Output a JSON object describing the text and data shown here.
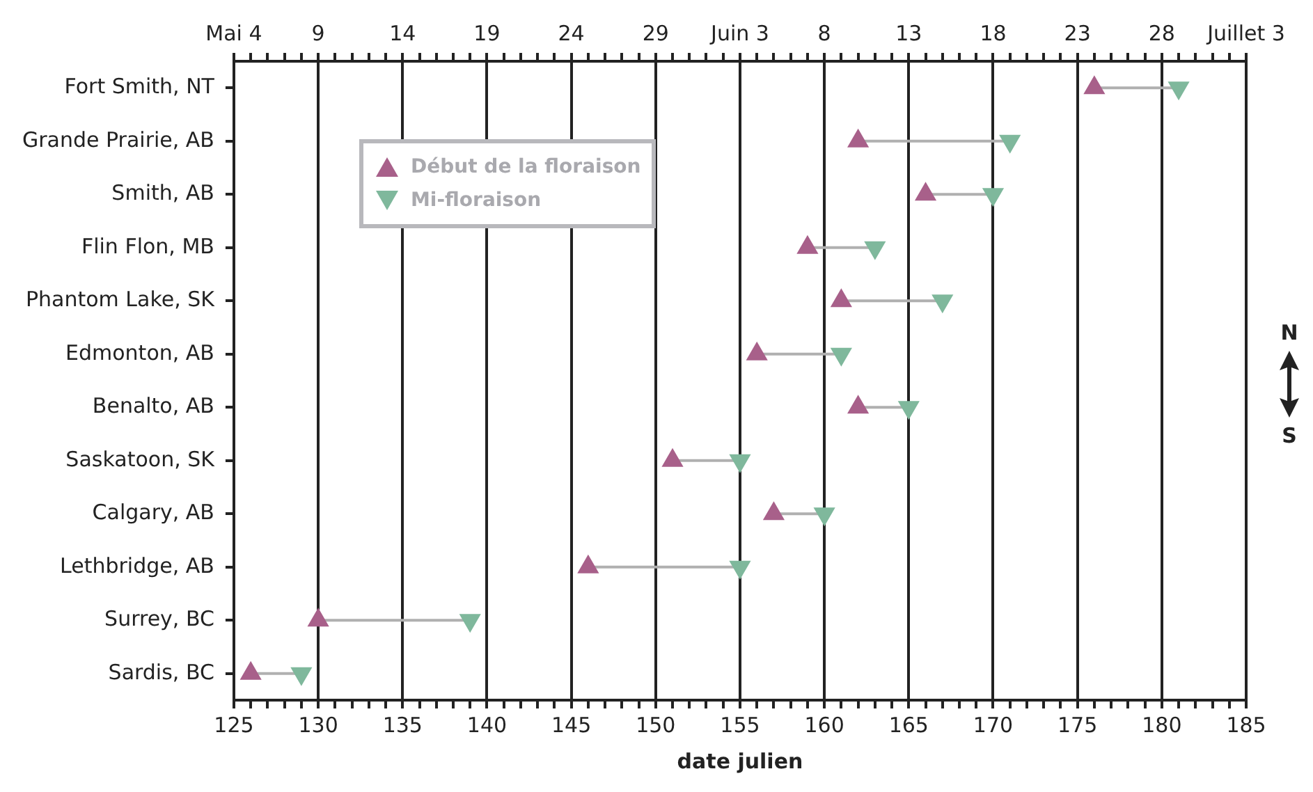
{
  "chart_data": {
    "type": "scatter",
    "xlabel": "date julien",
    "categories": [
      "Fort Smith, NT",
      "Grande Prairie, AB",
      "Smith, AB",
      "Flin Flon, MB",
      "Phantom Lake, SK",
      "Edmonton, AB",
      "Benalto, AB",
      "Saskatoon, SK",
      "Calgary, AB",
      "Lethbridge, AB",
      "Surrey, BC",
      "Sardis, BC"
    ],
    "series": [
      {
        "name": "Début de la floraison",
        "color": "#a8608a",
        "marker": "triangle",
        "values": [
          176,
          162,
          166,
          159,
          161,
          156,
          162,
          151,
          157,
          146,
          130,
          126
        ]
      },
      {
        "name": "Mi-floraison",
        "color": "#7fb89c",
        "marker": "triangle",
        "values": [
          181,
          171,
          170,
          163,
          167,
          161,
          165,
          155,
          160,
          155,
          139,
          129
        ]
      }
    ],
    "orientation": "horizontal",
    "xlim": [
      125,
      185
    ],
    "xticks": [
      125,
      {
        "value": 126,
        "label": null
      },
      {
        "value": 127,
        "label": null
      },
      {
        "value": 128,
        "label": null
      },
      {
        "value": 129,
        "label": null
      },
      130,
      {
        "value": 131,
        "label": null
      },
      {
        "value": 132,
        "label": null
      },
      {
        "value": 133,
        "label": null
      },
      {
        "value": 134,
        "label": null
      },
      135,
      {
        "value": 136,
        "label": null
      },
      {
        "value": 137,
        "label": null
      },
      {
        "value": 138,
        "label": null
      },
      {
        "value": 139,
        "label": null
      },
      140,
      {
        "value": 141,
        "label": null
      },
      {
        "value": 142,
        "label": null
      },
      {
        "value": 143,
        "label": null
      },
      {
        "value": 144,
        "label": null
      },
      145,
      {
        "value": 146,
        "label": null
      },
      {
        "value": 147,
        "label": null
      },
      {
        "value": 148,
        "label": null
      },
      {
        "value": 149,
        "label": null
      },
      150,
      {
        "value": 151,
        "label": null
      },
      {
        "value": 152,
        "label": null
      },
      {
        "value": 153,
        "label": null
      },
      {
        "value": 154,
        "label": null
      },
      155,
      {
        "value": 156,
        "label": null
      },
      {
        "value": 157,
        "label": null
      },
      {
        "value": 158,
        "label": null
      },
      {
        "value": 159,
        "label": null
      },
      160,
      {
        "value": 161,
        "label": null
      },
      {
        "value": 162,
        "label": null
      },
      {
        "value": 163,
        "label": null
      },
      {
        "value": 164,
        "label": null
      },
      165,
      {
        "value": 166,
        "label": null
      },
      {
        "value": 167,
        "label": null
      },
      {
        "value": 168,
        "label": null
      },
      {
        "value": 169,
        "label": null
      },
      170,
      {
        "value": 171,
        "label": null
      },
      {
        "value": 172,
        "label": null
      },
      {
        "value": 173,
        "label": null
      },
      {
        "value": 174,
        "label": null
      },
      175,
      {
        "value": 176,
        "label": null
      },
      {
        "value": 177,
        "label": null
      },
      {
        "value": 178,
        "label": null
      },
      {
        "value": 179,
        "label": null
      },
      180,
      {
        "value": 181,
        "label": null
      },
      {
        "value": 182,
        "label": null
      },
      {
        "value": 183,
        "label": null
      },
      {
        "value": 184,
        "label": null
      },
      185
    ],
    "x2lim": [
      "--05-04",
      "--07-03"
    ],
    "x2ticks": [
      {
        "value": "--05-04",
        "label": "Mai 4"
      },
      {
        "value": "--05-05",
        "label": null
      },
      {
        "value": "--05-06",
        "label": null
      },
      {
        "value": "--05-07",
        "label": null
      },
      {
        "value": "--05-08",
        "label": null
      },
      {
        "value": "--05-09",
        "label": "9"
      },
      {
        "value": "--05-10",
        "label": null
      },
      {
        "value": "--05-11",
        "label": null
      },
      {
        "value": "--05-12",
        "label": null
      },
      {
        "value": "--05-13",
        "label": null
      },
      {
        "value": "--05-14",
        "label": "14"
      },
      {
        "value": "--05-15",
        "label": null
      },
      {
        "value": "--05-16",
        "label": null
      },
      {
        "value": "--05-17",
        "label": null
      },
      {
        "value": "--05-18",
        "label": null
      },
      {
        "value": "--05-19",
        "label": "19"
      },
      {
        "value": "--05-20",
        "label": null
      },
      {
        "value": "--05-21",
        "label": null
      },
      {
        "value": "--05-22",
        "label": null
      },
      {
        "value": "--05-23",
        "label": null
      },
      {
        "value": "--05-24",
        "label": "24"
      },
      {
        "value": "--05-25",
        "label": null
      },
      {
        "value": "--05-26",
        "label": null
      },
      {
        "value": "--05-27",
        "label": null
      },
      {
        "value": "--05-28",
        "label": null
      },
      {
        "value": "--05-29",
        "label": "29"
      },
      {
        "value": "--05-30",
        "label": null
      },
      {
        "value": "--05-31",
        "label": null
      },
      {
        "value": "--06-01",
        "label": null
      },
      {
        "value": "--06-02",
        "label": null
      },
      {
        "value": "--06-03",
        "label": "Juin 3"
      },
      {
        "value": "--06-04",
        "label": null
      },
      {
        "value": "--06-05",
        "label": null
      },
      {
        "value": "--06-06",
        "label": null
      },
      {
        "value": "--06-07",
        "label": null
      },
      {
        "value": "--06-08",
        "label": "8"
      },
      {
        "value": "--06-09",
        "label": null
      },
      {
        "value": "--06-10",
        "label": null
      },
      {
        "value": "--06-11",
        "label": null
      },
      {
        "value": "--06-12",
        "label": null
      },
      {
        "value": "--06-13",
        "label": "13"
      },
      {
        "value": "--06-14",
        "label": null
      },
      {
        "value": "--06-15",
        "label": null
      },
      {
        "value": "--06-16",
        "label": null
      },
      {
        "value": "--06-17",
        "label": null
      },
      {
        "value": "--06-18",
        "label": "18"
      },
      {
        "value": "--06-19",
        "label": null
      },
      {
        "value": "--06-20",
        "label": null
      },
      {
        "value": "--06-21",
        "label": null
      },
      {
        "value": "--06-22",
        "label": null
      },
      {
        "value": "--06-23",
        "label": "23"
      },
      {
        "value": "--06-24",
        "label": null
      },
      {
        "value": "--06-25",
        "label": null
      },
      {
        "value": "--06-26",
        "label": null
      },
      {
        "value": "--06-27",
        "label": null
      },
      {
        "value": "--06-28",
        "label": "28"
      },
      {
        "value": "--06-29",
        "label": null
      },
      {
        "value": "--06-30",
        "label": null
      },
      {
        "value": "--07-01",
        "label": null
      },
      {
        "value": "--07-02",
        "label": null
      },
      {
        "value": "--07-03",
        "label": "Juillet 3"
      }
    ],
    "grid": "x",
    "legend": "top left",
    "annotations": [
      "N",
      "S"
    ]
  }
}
